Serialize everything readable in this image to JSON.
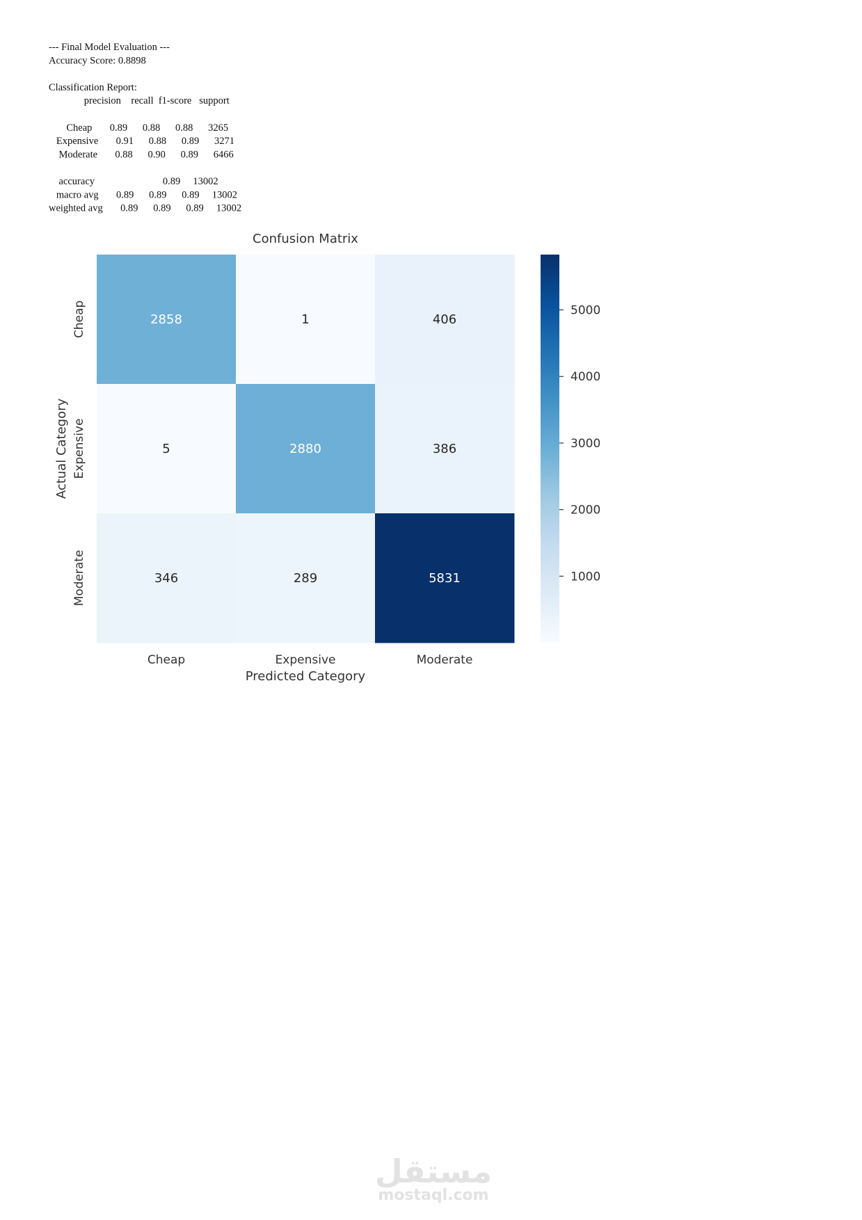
{
  "report": {
    "lines": [
      "--- Final Model Evaluation ---",
      "Accuracy Score: 0.8898",
      "Classification Report:",
      "              precision    recall  f1-score   support",
      "       Cheap       0.89      0.88      0.88      3265",
      "   Expensive       0.91      0.88      0.89      3271",
      "    Moderate       0.88      0.90      0.89      6466",
      "    accuracy                           0.89     13002",
      "   macro avg       0.89      0.89      0.89     13002",
      "weighted avg       0.89      0.89      0.89     13002"
    ]
  },
  "chart_data": {
    "type": "heatmap",
    "title": "Confusion Matrix",
    "xlabel": "Predicted Category",
    "ylabel": "Actual Category",
    "x_categories": [
      "Cheap",
      "Expensive",
      "Moderate"
    ],
    "y_categories": [
      "Cheap",
      "Expensive",
      "Moderate"
    ],
    "values": [
      [
        2858,
        1,
        406
      ],
      [
        5,
        2880,
        386
      ],
      [
        346,
        289,
        5831
      ]
    ],
    "zlim": [
      1,
      5831
    ],
    "zticks": [
      1000,
      2000,
      3000,
      4000,
      5000
    ],
    "colorscale": [
      "#f7fbff",
      "#deebf7",
      "#c6dbef",
      "#9ecae1",
      "#6baed6",
      "#4292c6",
      "#2171b5",
      "#08519c",
      "#08306b"
    ]
  },
  "watermark": {
    "logo": "مستقل",
    "site": "mostaql.com"
  }
}
